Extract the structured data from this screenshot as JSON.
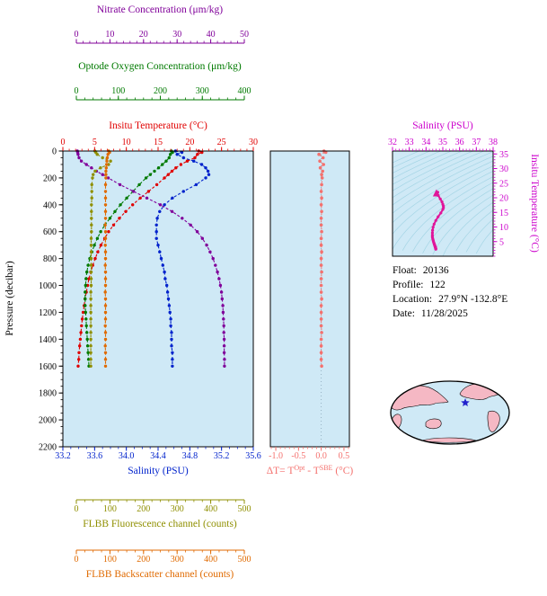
{
  "page": {
    "background": "#ffffff"
  },
  "colors": {
    "temperature": "#e00000",
    "salinity": "#0022cc",
    "oxygen": "#007a00",
    "nitrate": "#80009a",
    "fluorescence": "#8f8f00",
    "backscatter": "#e06a00",
    "delta_t": "#f4716e",
    "ts_label": "#cc00cc",
    "ts_curve": "#e0159a",
    "plot_bg": "#cfe9f6",
    "contour": "#a5d5e5",
    "frame": "#000000",
    "map_land": "#f5b8c4",
    "map_ocean": "#cfe9f6",
    "star": "#2222cc"
  },
  "labels": {
    "nitrate": "Nitrate Concentration (μm/kg)",
    "oxygen": "Optode Oxygen Concentration (μm/kg)",
    "temperature": "Insitu Temperature (°C)",
    "pressure": "Pressure (decibar)",
    "salinity": "Salinity (PSU)",
    "fluorescence": "FLBB Fluorescence channel (counts)",
    "backscatter": "FLBB Backscatter channel (counts)",
    "delta_prefix": "ΔT= T",
    "delta_sup1": "Opt",
    "delta_mid": " - T",
    "delta_sup2": "SBE",
    "delta_suffix": " (°C)",
    "ts_salinity": "Salinity (PSU)",
    "ts_temperature": "Insitu Temperature (°C)"
  },
  "float_info": {
    "rows": [
      {
        "label": "Float:",
        "value": "20136"
      },
      {
        "label": "Profile:",
        "value": "122"
      },
      {
        "label": "Location:",
        "value": "27.9°N -132.8°E"
      },
      {
        "label": "Date:",
        "value": "11/28/2025"
      }
    ]
  },
  "map": {
    "type": "world-map-oval",
    "marker": "float-location-star"
  },
  "chart_data": [
    {
      "type": "line",
      "title": "Multi-parameter float profile vs pressure",
      "ylabel": "Pressure (decibar)",
      "ylim": [
        0,
        2200
      ],
      "y_ticks": [
        0,
        200,
        400,
        600,
        800,
        1000,
        1200,
        1400,
        1600,
        1800,
        2000,
        2200
      ],
      "pressure": [
        0,
        10,
        25,
        50,
        75,
        100,
        125,
        150,
        175,
        200,
        250,
        300,
        350,
        400,
        450,
        500,
        550,
        600,
        650,
        700,
        750,
        800,
        850,
        900,
        950,
        1000,
        1050,
        1100,
        1150,
        1200,
        1250,
        1300,
        1350,
        1400,
        1450,
        1500,
        1550,
        1600
      ],
      "series": [
        {
          "name": "Insitu Temperature (°C)",
          "color": "temperature",
          "axis_span": "main",
          "placement": "top_main",
          "range": [
            0,
            30
          ],
          "ticks": [
            0,
            5,
            10,
            15,
            20,
            25,
            30
          ],
          "minor_step": 1,
          "values": [
            21.4,
            21.9,
            21.2,
            20.8,
            19.6,
            18.6,
            17.8,
            17.2,
            16.6,
            16.0,
            14.8,
            13.5,
            12.2,
            11.0,
            9.9,
            8.9,
            8.0,
            7.2,
            6.6,
            6.0,
            5.5,
            5.1,
            4.7,
            4.4,
            4.1,
            3.9,
            3.7,
            3.5,
            3.35,
            3.2,
            3.05,
            2.95,
            2.85,
            2.75,
            2.65,
            2.55,
            2.5,
            2.4
          ]
        },
        {
          "name": "Salinity (PSU)",
          "color": "salinity",
          "axis_span": "main",
          "placement": "bottom_main",
          "range": [
            33.2,
            35.6
          ],
          "ticks": [
            "33.2",
            "33.6",
            "34.0",
            "34.4",
            "34.8",
            "35.2",
            "35.6"
          ],
          "minor_step": 0.1,
          "values": [
            34.62,
            34.7,
            34.64,
            34.72,
            34.85,
            34.95,
            35.0,
            35.03,
            35.04,
            35.0,
            34.88,
            34.72,
            34.58,
            34.48,
            34.42,
            34.39,
            34.38,
            34.38,
            34.38,
            34.4,
            34.42,
            34.44,
            34.46,
            34.48,
            34.49,
            34.51,
            34.52,
            34.53,
            34.54,
            34.55,
            34.56,
            34.56,
            34.57,
            34.57,
            34.57,
            34.58,
            34.58,
            34.58
          ]
        },
        {
          "name": "Optode Oxygen Concentration (μm/kg)",
          "color": "oxygen",
          "axis_span": "aux",
          "placement": "top2",
          "range": [
            0,
            400
          ],
          "ticks": [
            0,
            100,
            200,
            300,
            400
          ],
          "minor_step": 20,
          "values": [
            226,
            229,
            224,
            221,
            214,
            205,
            196,
            186,
            176,
            166,
            150,
            135,
            120,
            105,
            92,
            80,
            68,
            58,
            50,
            43,
            37,
            32,
            28,
            25,
            23,
            22,
            21,
            21,
            21,
            22,
            23,
            24,
            25,
            26,
            27,
            28,
            29,
            30
          ]
        },
        {
          "name": "Nitrate Concentration (μm/kg)",
          "color": "nitrate",
          "axis_span": "aux",
          "placement": "top1",
          "range": [
            0,
            50
          ],
          "ticks": [
            0,
            10,
            20,
            30,
            40,
            50
          ],
          "minor_step": 2,
          "values": [
            0.3,
            0.4,
            0.5,
            0.8,
            1.5,
            3.0,
            4.5,
            6.0,
            7.8,
            9.5,
            13,
            17,
            21,
            25,
            28.5,
            31.5,
            34,
            36,
            37.5,
            38.8,
            39.8,
            40.7,
            41.4,
            42.0,
            42.5,
            42.9,
            43.2,
            43.4,
            43.6,
            43.7,
            43.8,
            43.9,
            43.9,
            44.0,
            44.0,
            44.0,
            44.1,
            44.1
          ]
        },
        {
          "name": "FLBB Fluorescence channel (counts)",
          "color": "fluorescence",
          "axis_span": "aux",
          "placement": "bottom2",
          "range": [
            0,
            500
          ],
          "ticks": [
            0,
            100,
            200,
            300,
            400,
            500
          ],
          "minor_step": 25,
          "values": [
            55,
            58,
            62,
            78,
            102,
            96,
            72,
            56,
            50,
            48,
            46,
            46,
            46,
            45,
            45,
            45,
            45,
            45,
            44,
            44,
            44,
            44,
            44,
            44,
            44,
            44,
            43,
            43,
            43,
            43,
            43,
            43,
            43,
            43,
            43,
            43,
            43,
            43
          ]
        },
        {
          "name": "FLBB Backscatter channel (counts)",
          "color": "backscatter",
          "axis_span": "aux",
          "placement": "bottom3",
          "range": [
            0,
            500
          ],
          "ticks": [
            0,
            100,
            200,
            300,
            400,
            500
          ],
          "minor_step": 25,
          "values": [
            96,
            99,
            94,
            92,
            91,
            90,
            89,
            88,
            88,
            88,
            87,
            87,
            87,
            87,
            87,
            87,
            86,
            87,
            87,
            86,
            87,
            87,
            86,
            87,
            87,
            87,
            86,
            87,
            87,
            87,
            87,
            86,
            87,
            87,
            86,
            87,
            87,
            87
          ]
        }
      ]
    },
    {
      "type": "scatter",
      "title": "ΔT = TOpt - TSBE (°C) vs pressure",
      "xlim": [
        -1.12,
        0.62
      ],
      "x_ticks": [
        "-1.0",
        "-0.5",
        "0.0",
        "0.5"
      ],
      "minor_step": 0.1,
      "pressure": [
        0,
        10,
        25,
        50,
        75,
        100,
        125,
        150,
        175,
        200,
        250,
        300,
        350,
        400,
        450,
        500,
        550,
        600,
        650,
        700,
        750,
        800,
        850,
        900,
        950,
        1000,
        1050,
        1100,
        1150,
        1200,
        1250,
        1300,
        1350,
        1400,
        1450,
        1500,
        1550,
        1600
      ],
      "values": [
        0.06,
        0.1,
        -0.05,
        0.04,
        -0.03,
        0.05,
        -0.02,
        0.03,
        0.01,
        0.02,
        0.01,
        0.0,
        0.01,
        0.0,
        0.01,
        0.0,
        0.0,
        0.01,
        0.0,
        0.0,
        0.01,
        0.0,
        0.0,
        0.01,
        0.0,
        0.0,
        0.0,
        0.01,
        0.0,
        0.0,
        0.0,
        0.0,
        0.01,
        0.0,
        0.0,
        0.0,
        0.0,
        0.01
      ]
    },
    {
      "type": "line",
      "title": "Temperature-Salinity diagram",
      "xlabel": "Salinity (PSU)",
      "ylabel": "Insitu Temperature (°C)",
      "xlim": [
        32,
        38
      ],
      "ylim": [
        0,
        36
      ],
      "x_ticks": [
        32,
        33,
        34,
        35,
        36,
        37,
        38
      ],
      "y_ticks": [
        5,
        10,
        15,
        20,
        25,
        30,
        35
      ],
      "source": "temperature and salinity series of chart 0",
      "isopycnal_contours": true
    }
  ]
}
